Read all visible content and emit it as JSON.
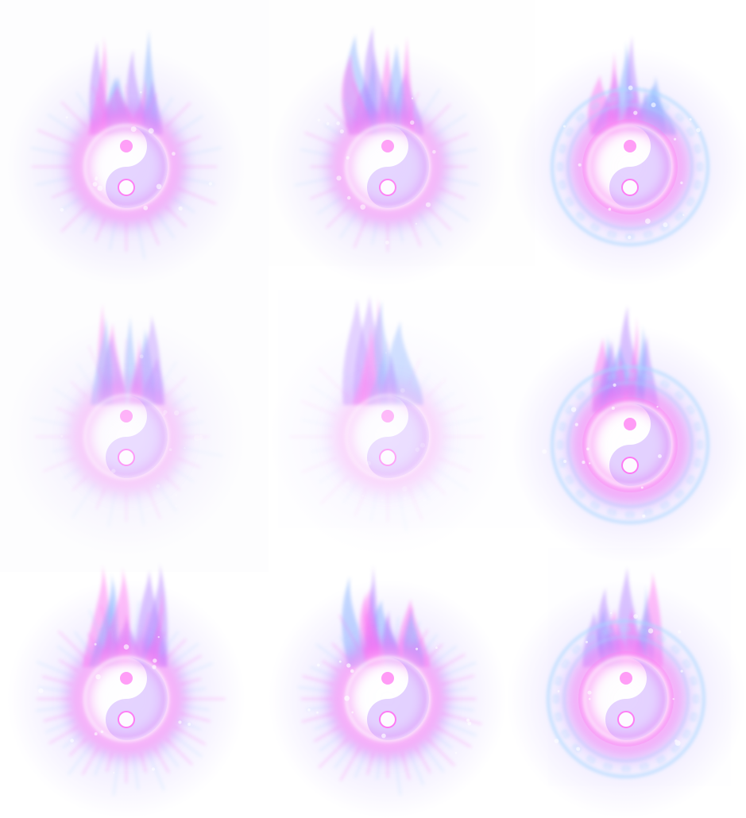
{
  "sprite_sheet": {
    "columns": 3,
    "rows": 3,
    "background": "#ffffff",
    "panel_color": "#fdfdfe",
    "colors": {
      "glow_outer": "#c9b6ff",
      "glow_mid": "#b07cff",
      "glow_magenta": "#ff6ef2",
      "core": "#ffffff",
      "flame_blue": "#7aa8ff",
      "rune_cyan": "#a9d8ff"
    },
    "frames": [
      {
        "index": 1,
        "effect": "yin-yang-orb",
        "intensity": 0.85,
        "rune_ring": false
      },
      {
        "index": 2,
        "effect": "yin-yang-orb",
        "intensity": 0.8,
        "rune_ring": false
      },
      {
        "index": 3,
        "effect": "rune-circle-flame",
        "intensity": 0.9,
        "rune_ring": true
      },
      {
        "index": 4,
        "effect": "yin-yang-orb-fading",
        "intensity": 0.45,
        "rune_ring": false
      },
      {
        "index": 5,
        "effect": "yin-yang-orb-fading",
        "intensity": 0.3,
        "rune_ring": false
      },
      {
        "index": 6,
        "effect": "rune-circle-flame",
        "intensity": 0.95,
        "rune_ring": true
      },
      {
        "index": 7,
        "effect": "yin-yang-orb-burst",
        "intensity": 0.9,
        "rune_ring": false
      },
      {
        "index": 8,
        "effect": "yin-yang-orb-burst",
        "intensity": 0.95,
        "rune_ring": false
      },
      {
        "index": 9,
        "effect": "rune-circle-flame",
        "intensity": 0.9,
        "rune_ring": true
      }
    ]
  }
}
